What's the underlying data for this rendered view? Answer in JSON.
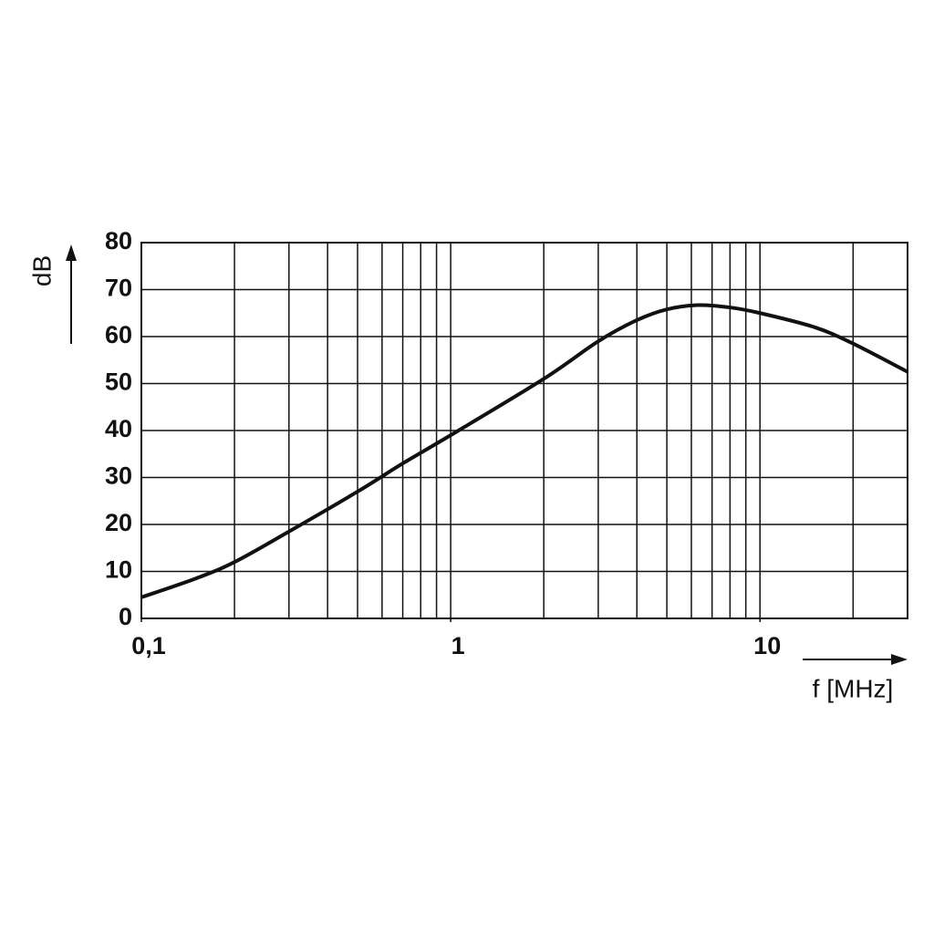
{
  "chart_data": {
    "type": "line",
    "x_label": "f [MHz]",
    "y_label": "dB",
    "x": [
      0.1,
      0.15,
      0.2,
      0.3,
      0.5,
      0.7,
      1,
      2,
      3,
      4,
      5,
      6.3,
      8,
      10,
      15,
      20,
      30
    ],
    "values": [
      4.5,
      8.5,
      12,
      18.5,
      27,
      33,
      39,
      51,
      59,
      63.5,
      65.8,
      66.7,
      66.2,
      65,
      62,
      58.5,
      52.5
    ],
    "color": "#111111",
    "xlim": [
      0.1,
      30
    ],
    "xlog": true,
    "xticks": [
      {
        "value": 0.1,
        "label": "0,1"
      },
      1,
      10
    ],
    "xgrid": [
      0.2,
      0.3,
      0.4,
      0.5,
      0.6,
      0.7,
      0.8,
      0.9,
      1,
      2,
      3,
      4,
      5,
      6,
      7,
      8,
      9,
      10,
      20
    ],
    "ylim": [
      0,
      80
    ],
    "yticks": [
      0,
      10,
      20,
      30,
      40,
      50,
      60,
      70,
      80
    ],
    "grid": true
  }
}
